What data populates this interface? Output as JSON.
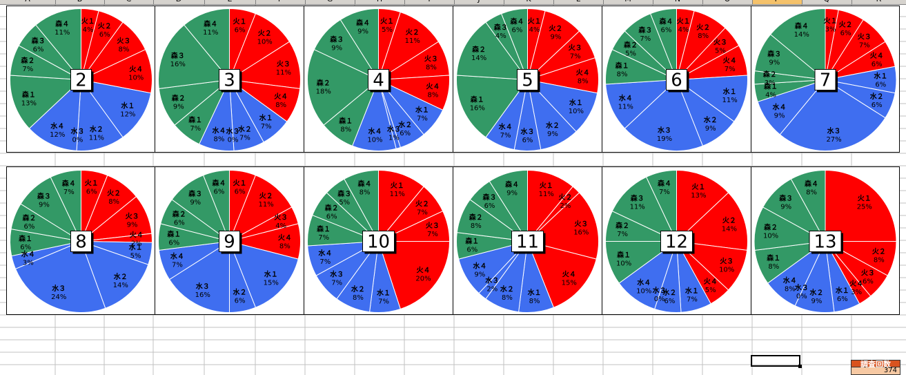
{
  "column_headers": [
    "A",
    "B",
    "C",
    "D",
    "E",
    "F",
    "G",
    "H",
    "I",
    "J",
    "K",
    "L",
    "M",
    "N",
    "O",
    "P",
    "Q",
    "R"
  ],
  "colors": {
    "fire": "#ff0000",
    "water": "#3f6ef0",
    "forest": "#339966",
    "grid": "#c0c0c0",
    "selected_header": "#f5c26b"
  },
  "counter": {
    "label": "調査回数",
    "value": "374",
    "label_color": "#d9531e",
    "value_color": "#f7c9a3"
  },
  "chart_data": [
    {
      "type": "pie",
      "title": "2",
      "slices": [
        {
          "label": "火１",
          "pct": "4%",
          "value": 4
        },
        {
          "label": "火２",
          "pct": "6%",
          "value": 6
        },
        {
          "label": "火３",
          "pct": "8%",
          "value": 8
        },
        {
          "label": "火４",
          "pct": "10%",
          "value": 10
        },
        {
          "label": "水１",
          "pct": "12%",
          "value": 12
        },
        {
          "label": "水２",
          "pct": "11%",
          "value": 11
        },
        {
          "label": "水３",
          "pct": "0%",
          "value": 0
        },
        {
          "label": "水４",
          "pct": "12%",
          "value": 12
        },
        {
          "label": "森１",
          "pct": "13%",
          "value": 13
        },
        {
          "label": "森２",
          "pct": "7%",
          "value": 7
        },
        {
          "label": "森３",
          "pct": "6%",
          "value": 6
        },
        {
          "label": "森４",
          "pct": "11%",
          "value": 11
        }
      ]
    },
    {
      "type": "pie",
      "title": "3",
      "slices": [
        {
          "label": "火１",
          "pct": "6%",
          "value": 6
        },
        {
          "label": "火２",
          "pct": "10%",
          "value": 10
        },
        {
          "label": "火３",
          "pct": "11%",
          "value": 11
        },
        {
          "label": "火４",
          "pct": "8%",
          "value": 8
        },
        {
          "label": "水１",
          "pct": "7%",
          "value": 7
        },
        {
          "label": "水２",
          "pct": "7%",
          "value": 7
        },
        {
          "label": "水３",
          "pct": "0%",
          "value": 0
        },
        {
          "label": "水４",
          "pct": "8%",
          "value": 8
        },
        {
          "label": "森１",
          "pct": "7%",
          "value": 7
        },
        {
          "label": "森２",
          "pct": "9%",
          "value": 9
        },
        {
          "label": "森３",
          "pct": "16%",
          "value": 16
        },
        {
          "label": "森４",
          "pct": "11%",
          "value": 11
        }
      ]
    },
    {
      "type": "pie",
      "title": "4",
      "slices": [
        {
          "label": "火１",
          "pct": "5%",
          "value": 5
        },
        {
          "label": "火２",
          "pct": "11%",
          "value": 11
        },
        {
          "label": "火３",
          "pct": "8%",
          "value": 8
        },
        {
          "label": "火４",
          "pct": "8%",
          "value": 8
        },
        {
          "label": "水１",
          "pct": "7%",
          "value": 7
        },
        {
          "label": "水２",
          "pct": "6%",
          "value": 6
        },
        {
          "label": "水３",
          "pct": "1%",
          "value": 1
        },
        {
          "label": "水４",
          "pct": "10%",
          "value": 10
        },
        {
          "label": "森１",
          "pct": "8%",
          "value": 8
        },
        {
          "label": "森２",
          "pct": "18%",
          "value": 18
        },
        {
          "label": "森３",
          "pct": "9%",
          "value": 9
        },
        {
          "label": "森４",
          "pct": "9%",
          "value": 9
        }
      ]
    },
    {
      "type": "pie",
      "title": "5",
      "slices": [
        {
          "label": "火１",
          "pct": "4%",
          "value": 4
        },
        {
          "label": "火２",
          "pct": "9%",
          "value": 9
        },
        {
          "label": "火３",
          "pct": "7%",
          "value": 7
        },
        {
          "label": "火４",
          "pct": "8%",
          "value": 8
        },
        {
          "label": "水１",
          "pct": "10%",
          "value": 10
        },
        {
          "label": "水２",
          "pct": "9%",
          "value": 9
        },
        {
          "label": "水３",
          "pct": "6%",
          "value": 6
        },
        {
          "label": "水４",
          "pct": "7%",
          "value": 7
        },
        {
          "label": "森１",
          "pct": "16%",
          "value": 16
        },
        {
          "label": "森２",
          "pct": "14%",
          "value": 14
        },
        {
          "label": "森３",
          "pct": "4%",
          "value": 4
        },
        {
          "label": "森４",
          "pct": "6%",
          "value": 6
        }
      ]
    },
    {
      "type": "pie",
      "title": "6",
      "slices": [
        {
          "label": "火１",
          "pct": "4%",
          "value": 4
        },
        {
          "label": "火２",
          "pct": "8%",
          "value": 8
        },
        {
          "label": "火３",
          "pct": "5%",
          "value": 5
        },
        {
          "label": "火４",
          "pct": "7%",
          "value": 7
        },
        {
          "label": "水１",
          "pct": "11%",
          "value": 11
        },
        {
          "label": "水２",
          "pct": "9%",
          "value": 9
        },
        {
          "label": "水３",
          "pct": "19%",
          "value": 19
        },
        {
          "label": "水４",
          "pct": "11%",
          "value": 11
        },
        {
          "label": "森１",
          "pct": "8%",
          "value": 8
        },
        {
          "label": "森２",
          "pct": "5%",
          "value": 5
        },
        {
          "label": "森３",
          "pct": "7%",
          "value": 7
        },
        {
          "label": "森４",
          "pct": "6%",
          "value": 6
        }
      ]
    },
    {
      "type": "pie",
      "title": "7",
      "slices": [
        {
          "label": "火１",
          "pct": "3%",
          "value": 3
        },
        {
          "label": "火２",
          "pct": "6%",
          "value": 6
        },
        {
          "label": "火３",
          "pct": "7%",
          "value": 7
        },
        {
          "label": "火４",
          "pct": "6%",
          "value": 6
        },
        {
          "label": "水１",
          "pct": "6%",
          "value": 6
        },
        {
          "label": "水２",
          "pct": "6%",
          "value": 6
        },
        {
          "label": "水３",
          "pct": "27%",
          "value": 27
        },
        {
          "label": "水４",
          "pct": "9%",
          "value": 9
        },
        {
          "label": "森１",
          "pct": "4%",
          "value": 4
        },
        {
          "label": "森２",
          "pct": "3%",
          "value": 3
        },
        {
          "label": "森３",
          "pct": "9%",
          "value": 9
        },
        {
          "label": "森４",
          "pct": "14%",
          "value": 14
        }
      ]
    },
    {
      "type": "pie",
      "title": "8",
      "slices": [
        {
          "label": "火１",
          "pct": "6%",
          "value": 6
        },
        {
          "label": "火２",
          "pct": "8%",
          "value": 8
        },
        {
          "label": "火３",
          "pct": "9%",
          "value": 9
        },
        {
          "label": "火４",
          "pct": "2%",
          "value": 2
        },
        {
          "label": "水１",
          "pct": "5%",
          "value": 5
        },
        {
          "label": "水２",
          "pct": "14%",
          "value": 14
        },
        {
          "label": "水３",
          "pct": "24%",
          "value": 24
        },
        {
          "label": "水４",
          "pct": "3%",
          "value": 3
        },
        {
          "label": "森１",
          "pct": "6%",
          "value": 6
        },
        {
          "label": "森２",
          "pct": "6%",
          "value": 6
        },
        {
          "label": "森３",
          "pct": "9%",
          "value": 9
        },
        {
          "label": "森４",
          "pct": "7%",
          "value": 7
        }
      ]
    },
    {
      "type": "pie",
      "title": "9",
      "slices": [
        {
          "label": "火１",
          "pct": "6%",
          "value": 6
        },
        {
          "label": "火２",
          "pct": "11%",
          "value": 11
        },
        {
          "label": "火３",
          "pct": "4%",
          "value": 4
        },
        {
          "label": "火４",
          "pct": "8%",
          "value": 8
        },
        {
          "label": "水１",
          "pct": "15%",
          "value": 15
        },
        {
          "label": "水２",
          "pct": "6%",
          "value": 6
        },
        {
          "label": "水３",
          "pct": "16%",
          "value": 16
        },
        {
          "label": "水４",
          "pct": "7%",
          "value": 7
        },
        {
          "label": "森１",
          "pct": "6%",
          "value": 6
        },
        {
          "label": "森２",
          "pct": "6%",
          "value": 6
        },
        {
          "label": "森３",
          "pct": "9%",
          "value": 9
        },
        {
          "label": "森４",
          "pct": "6%",
          "value": 6
        }
      ]
    },
    {
      "type": "pie",
      "title": "10",
      "slices": [
        {
          "label": "火１",
          "pct": "11%",
          "value": 11
        },
        {
          "label": "火２",
          "pct": "7%",
          "value": 7
        },
        {
          "label": "火３",
          "pct": "7%",
          "value": 7
        },
        {
          "label": "火４",
          "pct": "20%",
          "value": 20
        },
        {
          "label": "水１",
          "pct": "7%",
          "value": 7
        },
        {
          "label": "水２",
          "pct": "8%",
          "value": 8
        },
        {
          "label": "水３",
          "pct": "7%",
          "value": 7
        },
        {
          "label": "水４",
          "pct": "7%",
          "value": 7
        },
        {
          "label": "森１",
          "pct": "7%",
          "value": 7
        },
        {
          "label": "森２",
          "pct": "6%",
          "value": 6
        },
        {
          "label": "森３",
          "pct": "5%",
          "value": 5
        },
        {
          "label": "森４",
          "pct": "8%",
          "value": 8
        }
      ]
    },
    {
      "type": "pie",
      "title": "11",
      "slices": [
        {
          "label": "火１",
          "pct": "11%",
          "value": 11
        },
        {
          "label": "火２",
          "pct": "2%",
          "value": 2
        },
        {
          "label": "火３",
          "pct": "16%",
          "value": 16
        },
        {
          "label": "火４",
          "pct": "15%",
          "value": 15
        },
        {
          "label": "水１",
          "pct": "8%",
          "value": 8
        },
        {
          "label": "水２",
          "pct": "8%",
          "value": 8
        },
        {
          "label": "水３",
          "pct": "2%",
          "value": 2
        },
        {
          "label": "水４",
          "pct": "9%",
          "value": 9
        },
        {
          "label": "森１",
          "pct": "6%",
          "value": 6
        },
        {
          "label": "森２",
          "pct": "8%",
          "value": 8
        },
        {
          "label": "森３",
          "pct": "6%",
          "value": 6
        },
        {
          "label": "森４",
          "pct": "9%",
          "value": 9
        }
      ]
    },
    {
      "type": "pie",
      "title": "12",
      "slices": [
        {
          "label": "火１",
          "pct": "13%",
          "value": 13
        },
        {
          "label": "火２",
          "pct": "14%",
          "value": 14
        },
        {
          "label": "火３",
          "pct": "10%",
          "value": 10
        },
        {
          "label": "火４",
          "pct": "5%",
          "value": 5
        },
        {
          "label": "水１",
          "pct": "7%",
          "value": 7
        },
        {
          "label": "水２",
          "pct": "6%",
          "value": 6
        },
        {
          "label": "水３",
          "pct": "0%",
          "value": 0
        },
        {
          "label": "水４",
          "pct": "10%",
          "value": 10
        },
        {
          "label": "森１",
          "pct": "10%",
          "value": 10
        },
        {
          "label": "森２",
          "pct": "7%",
          "value": 7
        },
        {
          "label": "森３",
          "pct": "11%",
          "value": 11
        },
        {
          "label": "森４",
          "pct": "7%",
          "value": 7
        }
      ]
    },
    {
      "type": "pie",
      "title": "13",
      "slices": [
        {
          "label": "火１",
          "pct": "25%",
          "value": 25
        },
        {
          "label": "火２",
          "pct": "8%",
          "value": 8
        },
        {
          "label": "火３",
          "pct": "6%",
          "value": 6
        },
        {
          "label": "火４",
          "pct": "3%",
          "value": 3
        },
        {
          "label": "水１",
          "pct": "6%",
          "value": 6
        },
        {
          "label": "水２",
          "pct": "9%",
          "value": 9
        },
        {
          "label": "水３",
          "pct": "0%",
          "value": 0
        },
        {
          "label": "水４",
          "pct": "8%",
          "value": 8
        },
        {
          "label": "森１",
          "pct": "8%",
          "value": 8
        },
        {
          "label": "森２",
          "pct": "10%",
          "value": 10
        },
        {
          "label": "森３",
          "pct": "9%",
          "value": 9
        },
        {
          "label": "森４",
          "pct": "8%",
          "value": 8
        }
      ]
    }
  ]
}
